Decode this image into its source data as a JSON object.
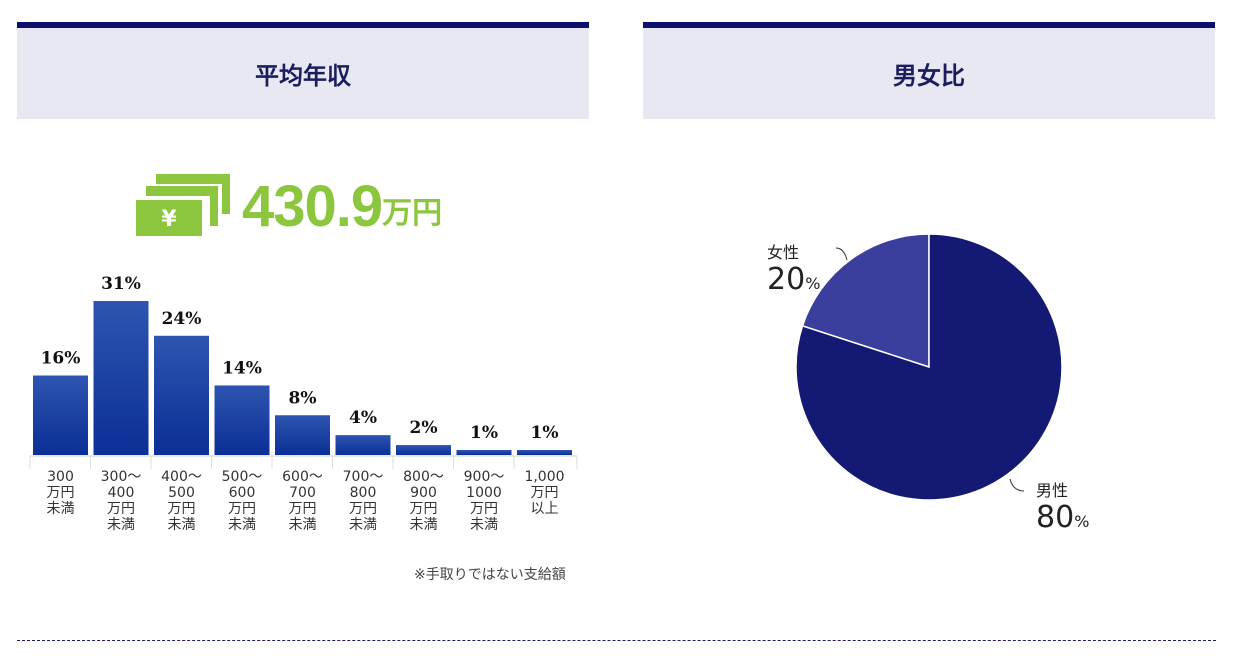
{
  "headers": {
    "income": "平均年収",
    "gender": "男女比"
  },
  "average": {
    "value": "430.9",
    "unit": "万円"
  },
  "note": "※手取りではない支給額",
  "colors": {
    "bar": "#1e43a6",
    "male": "#141a73",
    "female": "#3a3f9e",
    "accent": "#8cc63f"
  },
  "chart_data": [
    {
      "type": "bar",
      "title": "平均年収",
      "categories": [
        "300\n万円\n未満",
        "300〜\n400\n万円\n未満",
        "400〜\n500\n万円\n未満",
        "500〜\n600\n万円\n未満",
        "600〜\n700\n万円\n未満",
        "700〜\n800\n万円\n未満",
        "800〜\n900\n万円\n未満",
        "900〜\n1000\n万円\n未満",
        "1,000\n万円\n以上"
      ],
      "values": [
        16,
        31,
        24,
        14,
        8,
        4,
        2,
        1,
        1
      ],
      "value_labels": [
        "16%",
        "31%",
        "24%",
        "14%",
        "8%",
        "4%",
        "2%",
        "1%",
        "1%"
      ],
      "ylim": [
        0,
        31
      ]
    },
    {
      "type": "pie",
      "title": "男女比",
      "slices": [
        {
          "label": "女性",
          "value": 20,
          "display": "20",
          "pct": "%"
        },
        {
          "label": "男性",
          "value": 80,
          "display": "80",
          "pct": "%"
        }
      ]
    }
  ]
}
